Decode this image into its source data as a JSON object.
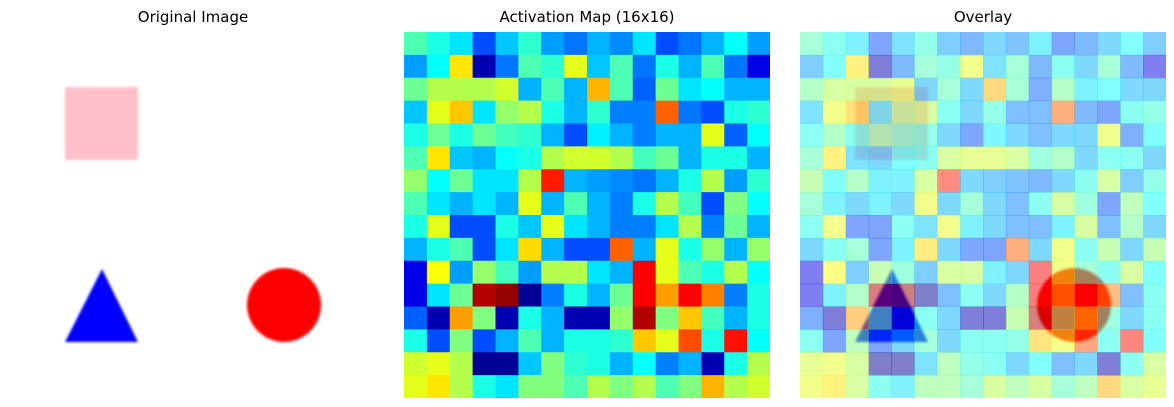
{
  "panels": [
    {
      "title": "Original Image"
    },
    {
      "title": "Activation Map (16x16)"
    },
    {
      "title": "Overlay"
    }
  ],
  "grid_size": 16,
  "activation": [
    [
      0.45,
      0.4,
      0.35,
      0.2,
      0.32,
      0.42,
      0.28,
      0.24,
      0.3,
      0.26,
      0.35,
      0.2,
      0.24,
      0.3,
      0.38,
      0.28
    ],
    [
      0.28,
      0.38,
      0.65,
      0.05,
      0.24,
      0.45,
      0.42,
      0.6,
      0.32,
      0.45,
      0.24,
      0.4,
      0.3,
      0.45,
      0.24,
      0.1
    ],
    [
      0.48,
      0.55,
      0.55,
      0.55,
      0.58,
      0.3,
      0.45,
      0.3,
      0.7,
      0.45,
      0.22,
      0.48,
      0.35,
      0.38,
      0.3,
      0.3
    ],
    [
      0.32,
      0.6,
      0.68,
      0.35,
      0.52,
      0.55,
      0.4,
      0.3,
      0.42,
      0.25,
      0.25,
      0.78,
      0.24,
      0.2,
      0.4,
      0.42
    ],
    [
      0.4,
      0.48,
      0.4,
      0.48,
      0.44,
      0.42,
      0.3,
      0.2,
      0.36,
      0.3,
      0.25,
      0.3,
      0.3,
      0.6,
      0.22,
      0.38
    ],
    [
      0.45,
      0.65,
      0.32,
      0.3,
      0.38,
      0.4,
      0.55,
      0.58,
      0.58,
      0.55,
      0.44,
      0.48,
      0.3,
      0.4,
      0.4,
      0.3
    ],
    [
      0.52,
      0.38,
      0.48,
      0.35,
      0.35,
      0.55,
      0.85,
      0.3,
      0.28,
      0.26,
      0.24,
      0.3,
      0.4,
      0.55,
      0.28,
      0.42
    ],
    [
      0.45,
      0.35,
      0.3,
      0.35,
      0.3,
      0.6,
      0.3,
      0.45,
      0.3,
      0.25,
      0.4,
      0.55,
      0.44,
      0.2,
      0.5,
      0.38
    ],
    [
      0.4,
      0.6,
      0.2,
      0.2,
      0.4,
      0.32,
      0.6,
      0.35,
      0.3,
      0.25,
      0.25,
      0.35,
      0.55,
      0.25,
      0.48,
      0.3
    ],
    [
      0.3,
      0.4,
      0.45,
      0.2,
      0.35,
      0.66,
      0.3,
      0.2,
      0.2,
      0.78,
      0.3,
      0.6,
      0.4,
      0.52,
      0.3,
      0.52
    ],
    [
      0.1,
      0.62,
      0.28,
      0.52,
      0.44,
      0.28,
      0.55,
      0.55,
      0.35,
      0.3,
      0.88,
      0.6,
      0.45,
      0.4,
      0.55,
      0.38
    ],
    [
      0.1,
      0.35,
      0.48,
      0.95,
      0.98,
      0.02,
      0.25,
      0.4,
      0.3,
      0.48,
      0.88,
      0.72,
      0.88,
      0.75,
      0.25,
      0.4
    ],
    [
      0.22,
      0.05,
      0.72,
      0.5,
      0.05,
      0.4,
      0.3,
      0.05,
      0.05,
      0.52,
      0.95,
      0.5,
      0.68,
      0.44,
      0.3,
      0.4
    ],
    [
      0.4,
      0.2,
      0.5,
      0.2,
      0.3,
      0.45,
      0.3,
      0.4,
      0.4,
      0.42,
      0.68,
      0.6,
      0.8,
      0.4,
      0.86,
      0.38
    ],
    [
      0.58,
      0.6,
      0.55,
      0.02,
      0.02,
      0.32,
      0.5,
      0.42,
      0.4,
      0.3,
      0.38,
      0.25,
      0.3,
      0.05,
      0.4,
      0.55
    ],
    [
      0.6,
      0.65,
      0.55,
      0.4,
      0.35,
      0.5,
      0.5,
      0.45,
      0.55,
      0.5,
      0.55,
      0.45,
      0.5,
      0.7,
      0.55,
      0.58
    ]
  ],
  "colors": {
    "square": "#ffc0cb",
    "triangle": "#0000ff",
    "circle": "#ff0000",
    "colormap": "jet"
  },
  "overlay_alpha": 0.5
}
